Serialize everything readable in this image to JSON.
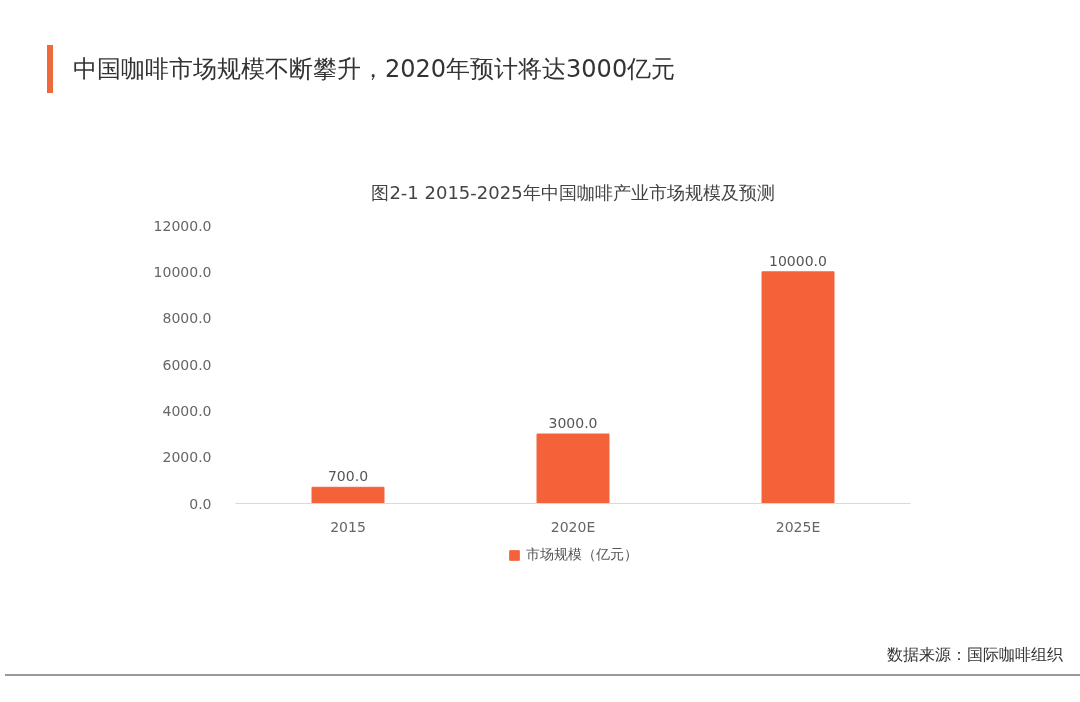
{
  "chart_data": {
    "type": "bar",
    "title": "中国咖啡市场规模不断攀升，2020年预计将达3000亿元",
    "subtitle": "图2-1 2015-2025年中国咖啡产业市场规模及预测",
    "categories": [
      "2015",
      "2020E",
      "2025E"
    ],
    "series": [
      {
        "name": "市场规模（亿元）",
        "color": "#f4623a",
        "values": [
          700,
          3000,
          10000
        ],
        "value_labels": [
          "700.0",
          "3000.0",
          "10000.0"
        ]
      }
    ],
    "ylim": [
      0,
      12000
    ],
    "yticks": [
      {
        "value": 0,
        "label": "0.0"
      },
      {
        "value": 2000,
        "label": "2000.0"
      },
      {
        "value": 4000,
        "label": "4000.0"
      },
      {
        "value": 6000,
        "label": "6000.0"
      },
      {
        "value": 8000,
        "label": "8000.0"
      },
      {
        "value": 10000,
        "label": "10000.0"
      },
      {
        "value": 12000,
        "label": "12000.0"
      }
    ],
    "legend": "bottom",
    "annotations": [
      "数据来源：国际咖啡组织"
    ]
  }
}
